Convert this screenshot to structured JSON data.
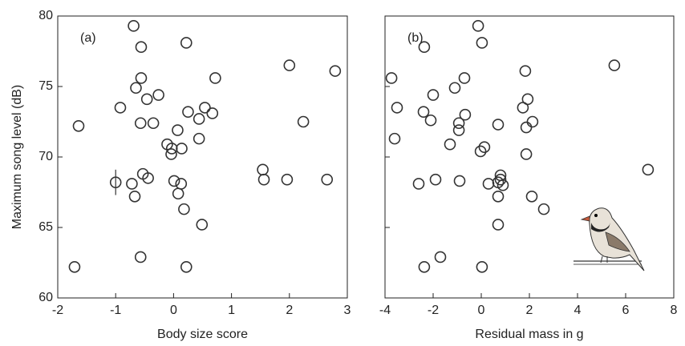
{
  "chart_data": [
    {
      "type": "scatter",
      "panel_label": "(a)",
      "xlabel": "Body size score",
      "ylabel": "Maximum song level (dB)",
      "color": "#333333",
      "xlim": [
        -2,
        3
      ],
      "ylim": [
        60,
        80
      ],
      "xticks": [
        -2,
        -1,
        0,
        1,
        2,
        3
      ],
      "yticks": [
        60,
        65,
        70,
        75,
        80
      ],
      "x": [
        -0.69,
        0.22,
        -0.56,
        2.0,
        2.79,
        -0.56,
        0.72,
        -0.65,
        -0.26,
        -0.46,
        -0.92,
        0.54,
        0.25,
        0.67,
        0.44,
        -1.64,
        -0.57,
        -0.35,
        2.24,
        0.07,
        0.44,
        -0.11,
        -0.03,
        0.14,
        -0.04,
        -1.0,
        -0.53,
        -0.44,
        -0.72,
        0.01,
        0.13,
        1.56,
        1.96,
        2.65,
        1.54,
        -0.67,
        0.08,
        0.18,
        0.49,
        -0.57,
        0.22,
        -1.71
      ],
      "values": [
        79.3,
        78.1,
        77.8,
        76.5,
        76.1,
        75.6,
        75.6,
        74.9,
        74.4,
        74.1,
        73.5,
        73.5,
        73.2,
        73.1,
        72.7,
        72.2,
        72.4,
        72.4,
        72.5,
        71.9,
        71.3,
        70.9,
        70.6,
        70.6,
        70.2,
        68.2,
        68.8,
        68.5,
        68.1,
        68.3,
        68.1,
        68.4,
        68.4,
        68.4,
        69.1,
        67.2,
        67.4,
        66.3,
        65.2,
        62.9,
        62.2,
        62.2
      ],
      "error_bar": {
        "x": -1.0,
        "ylow": 67.3,
        "yhigh": 69.1
      }
    },
    {
      "type": "scatter",
      "panel_label": "(b)",
      "xlabel": "Residual mass in g",
      "color": "#333333",
      "xlim": [
        -4,
        8
      ],
      "ylim": [
        60,
        80
      ],
      "xticks": [
        -4,
        -2,
        0,
        2,
        4,
        6,
        8
      ],
      "yticks": [
        60,
        65,
        70,
        75,
        80
      ],
      "x": [
        -0.13,
        0.03,
        -2.37,
        5.53,
        1.83,
        -3.73,
        -0.7,
        -1.1,
        -2.0,
        1.93,
        -3.5,
        1.73,
        -2.4,
        -0.67,
        -2.1,
        -0.93,
        0.7,
        2.13,
        1.87,
        -0.93,
        -3.6,
        -1.3,
        0.13,
        -0.03,
        1.87,
        6.93,
        0.8,
        0.8,
        0.7,
        0.9,
        0.3,
        -0.9,
        -1.9,
        -2.6,
        0.7,
        2.1,
        2.6,
        0.7,
        -1.7,
        0.03,
        -2.37
      ],
      "values": [
        79.3,
        78.1,
        77.8,
        76.5,
        76.1,
        75.6,
        75.6,
        74.9,
        74.4,
        74.1,
        73.5,
        73.5,
        73.2,
        73.0,
        72.6,
        72.4,
        72.3,
        72.5,
        72.1,
        71.9,
        71.3,
        70.9,
        70.7,
        70.4,
        70.2,
        69.1,
        68.7,
        68.4,
        68.2,
        68.0,
        68.1,
        68.3,
        68.4,
        68.1,
        67.2,
        67.2,
        66.3,
        65.2,
        62.9,
        62.2,
        62.2
      ]
    }
  ]
}
